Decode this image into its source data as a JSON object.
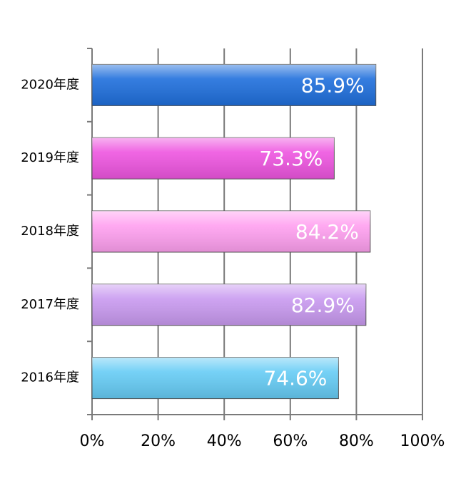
{
  "chart_data": {
    "type": "bar",
    "orientation": "horizontal",
    "categories": [
      "2020年度",
      "2019年度",
      "2018年度",
      "2017年度",
      "2016年度"
    ],
    "values": [
      85.9,
      73.3,
      84.2,
      82.9,
      74.6
    ],
    "value_labels": [
      "85.9%",
      "73.3%",
      "84.2%",
      "82.9%",
      "74.6%"
    ],
    "colors": [
      "#1f6fdc",
      "#ee55e0",
      "#ffa0f0",
      "#c99af0",
      "#66ccf5"
    ],
    "xlim": [
      0,
      100
    ],
    "xticks": [
      {
        "value": 0,
        "label": "0%"
      },
      {
        "value": 20,
        "label": "20%"
      },
      {
        "value": 40,
        "label": "40%"
      },
      {
        "value": 60,
        "label": "60%"
      },
      {
        "value": 80,
        "label": "80%"
      },
      {
        "value": 100,
        "label": "100%"
      }
    ],
    "grid": true
  }
}
